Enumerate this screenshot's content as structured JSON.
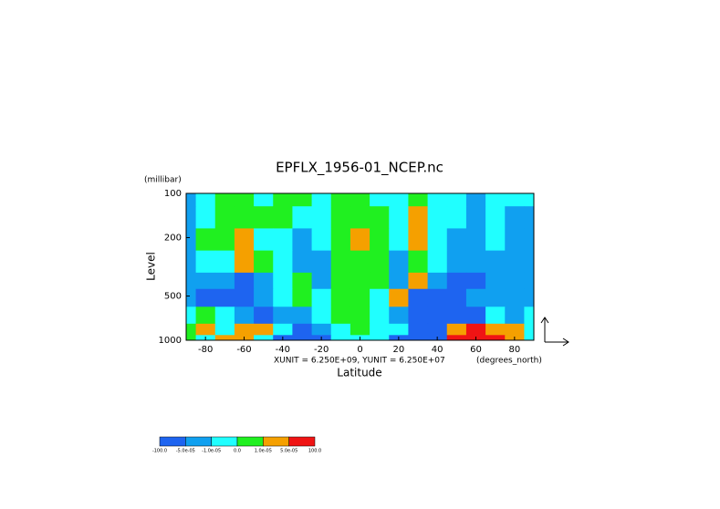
{
  "chart_data": {
    "type": "contour",
    "title": "EPFLX_1956-01_NCEP.nc",
    "x_label": "Latitude",
    "y_label": "Level",
    "y_unit_label": "(millibar)",
    "x_unit_label": "(degrees_north)",
    "vector_note": "XUNIT = 6.250E+09, YUNIT = 6.250E+07",
    "x": [
      -90,
      -80,
      -70,
      -60,
      -50,
      -40,
      -30,
      -20,
      -10,
      0,
      10,
      20,
      30,
      40,
      50,
      60,
      70,
      80,
      90
    ],
    "y": [
      100,
      150,
      200,
      300,
      400,
      500,
      700,
      850,
      1000
    ],
    "z": [
      [
        -3e-05,
        -5e-06,
        5e-06,
        5e-06,
        -5e-06,
        5e-06,
        5e-06,
        -5e-06,
        5e-06,
        5e-06,
        -5e-06,
        -5e-06,
        5e-06,
        -5e-06,
        -5e-06,
        -3e-05,
        -5e-06,
        -5e-06,
        -5e-06
      ],
      [
        -3e-05,
        -5e-06,
        5e-06,
        5e-06,
        5e-06,
        5e-06,
        -5e-06,
        -5e-06,
        5e-06,
        5e-06,
        5e-06,
        -5e-06,
        3e-05,
        -5e-06,
        -5e-06,
        -3e-05,
        -5e-06,
        -3e-05,
        -3e-05
      ],
      [
        -3e-05,
        5e-06,
        5e-06,
        3e-05,
        -5e-06,
        -5e-06,
        -3e-05,
        -5e-06,
        5e-06,
        3e-05,
        5e-06,
        -5e-06,
        3e-05,
        -5e-06,
        -3e-05,
        -3e-05,
        -5e-06,
        -3e-05,
        -3e-05
      ],
      [
        -3e-05,
        -5e-06,
        -5e-06,
        3e-05,
        5e-06,
        -5e-06,
        -3e-05,
        -3e-05,
        5e-06,
        5e-06,
        5e-06,
        -3e-05,
        5e-06,
        -5e-06,
        -3e-05,
        -3e-05,
        -3e-05,
        -3e-05,
        -3e-05
      ],
      [
        -3e-05,
        -3e-05,
        -3e-05,
        -8e-05,
        -3e-05,
        -5e-06,
        5e-06,
        -3e-05,
        5e-06,
        5e-06,
        5e-06,
        -3e-05,
        3e-05,
        -3e-05,
        -8e-05,
        -8e-05,
        -3e-05,
        -3e-05,
        -3e-05
      ],
      [
        -3e-05,
        -8e-05,
        -8e-05,
        -8e-05,
        -3e-05,
        -5e-06,
        5e-06,
        -5e-06,
        5e-06,
        5e-06,
        -5e-06,
        3e-05,
        -8e-05,
        -8e-05,
        -8e-05,
        -3e-05,
        -3e-05,
        -3e-05,
        -3e-05
      ],
      [
        -5e-06,
        5e-06,
        -5e-06,
        -3e-05,
        -8e-05,
        -3e-05,
        -3e-05,
        -5e-06,
        5e-06,
        5e-06,
        -5e-06,
        -3e-05,
        -8e-05,
        -8e-05,
        -8e-05,
        -8e-05,
        -5e-06,
        -3e-05,
        -5e-06
      ],
      [
        5e-06,
        3e-05,
        -5e-06,
        3e-05,
        3e-05,
        -5e-06,
        -8e-05,
        -3e-05,
        -5e-06,
        5e-06,
        -5e-06,
        -5e-06,
        -8e-05,
        -8e-05,
        3e-05,
        8e-05,
        3e-05,
        3e-05,
        -5e-06
      ],
      [
        5e-06,
        -5e-06,
        3e-05,
        3e-05,
        -5e-06,
        -8e-05,
        -8e-05,
        -8e-05,
        -5e-06,
        -5e-06,
        -5e-06,
        -8e-05,
        -8e-05,
        -8e-05,
        8e-05,
        8e-05,
        8e-05,
        3e-05,
        -5e-06
      ]
    ],
    "xlim": [
      -90,
      90
    ],
    "xticks": [
      -80,
      -60,
      -40,
      -20,
      0,
      20,
      40,
      60,
      80
    ],
    "ylim": [
      100,
      1000
    ],
    "yticks": [
      100,
      200,
      500,
      1000
    ],
    "log_y": true,
    "colorbar": {
      "levels": [
        {
          "value": -100,
          "label": "-100.0"
        },
        {
          "value": -5e-05,
          "label": "-5.0e-05"
        },
        {
          "value": -1e-05,
          "label": "-1.0e-05"
        },
        {
          "value": 0,
          "label": "0.0"
        },
        {
          "value": 1e-05,
          "label": "1.0e-05"
        },
        {
          "value": 5e-05,
          "label": "5.0e-05"
        },
        {
          "value": 100,
          "label": "100.0"
        }
      ],
      "colors": [
        "#1e64f0",
        "#10a0f0",
        "#20ffff",
        "#20f020",
        "#f5a000",
        "#f01414"
      ]
    }
  }
}
